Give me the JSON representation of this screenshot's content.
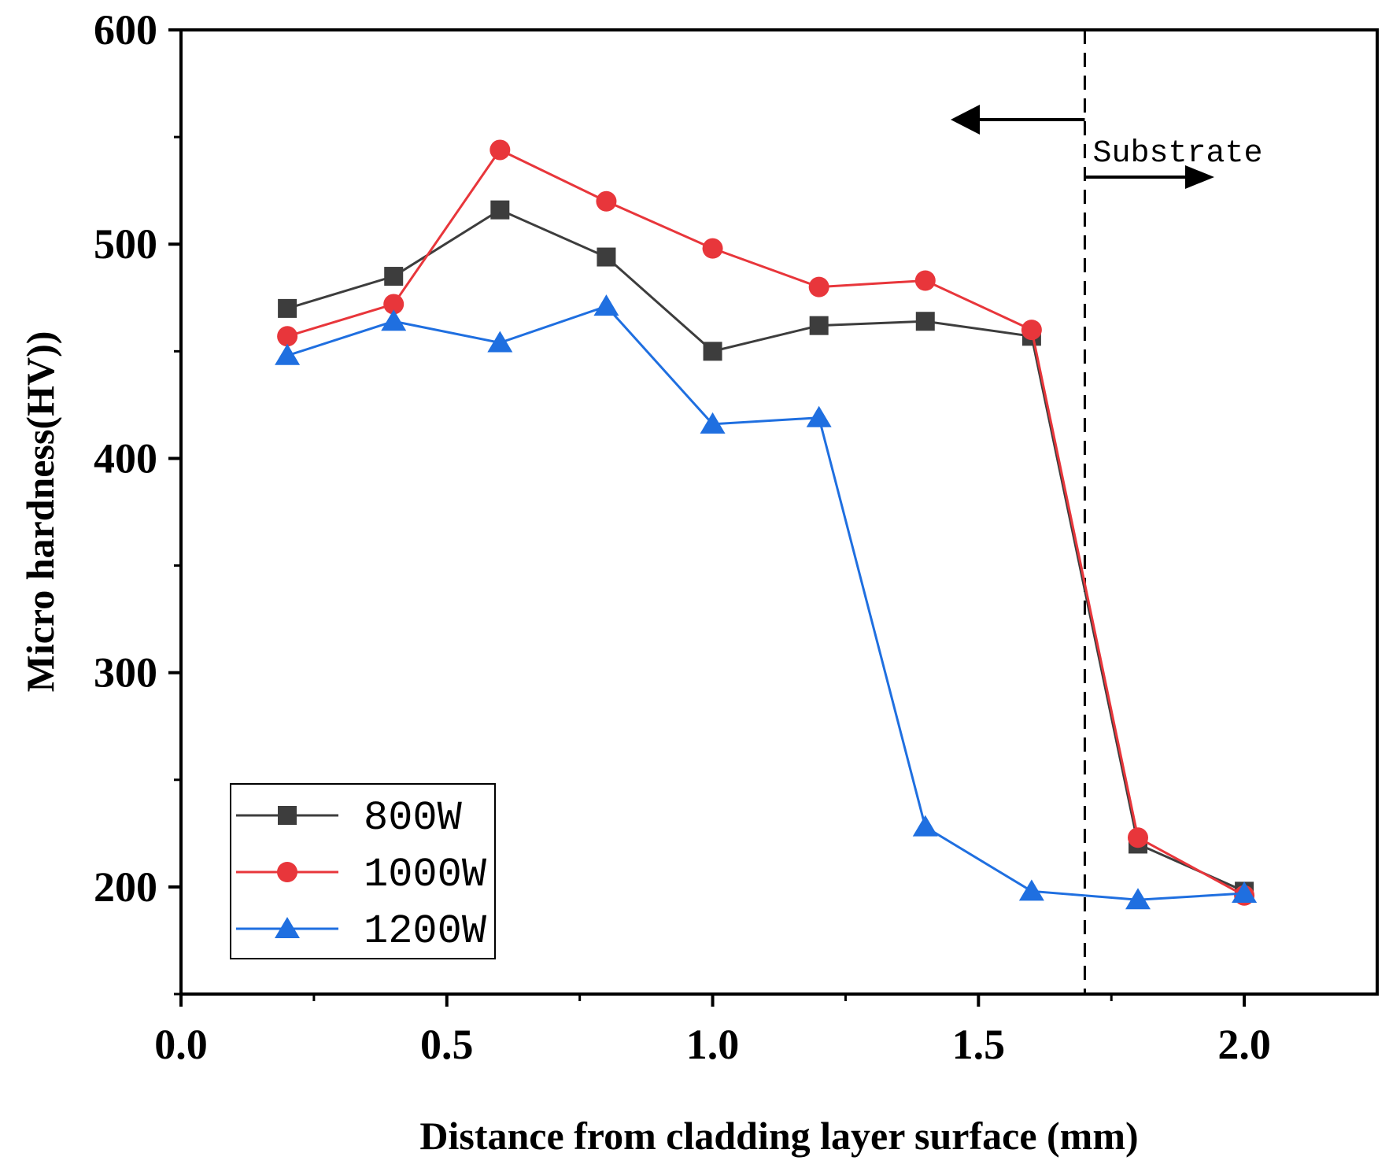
{
  "chart_data": {
    "type": "line",
    "title": "",
    "xlabel": "Distance from cladding layer surface (mm)",
    "ylabel": "Micro hardness(HV))",
    "xlim": [
      0.0,
      2.25
    ],
    "ylim": [
      150,
      600
    ],
    "x_ticks": [
      "0.0",
      "0.5",
      "1.0",
      "1.5",
      "2.0"
    ],
    "y_ticks": [
      "200",
      "300",
      "400",
      "500",
      "600"
    ],
    "grid": false,
    "legend_position": "bottom-left",
    "x": [
      0.2,
      0.4,
      0.6,
      0.8,
      1.0,
      1.2,
      1.4,
      1.6,
      1.8,
      2.0
    ],
    "series": [
      {
        "name": "800W",
        "marker": "square",
        "color": "#3d3d3d",
        "values": [
          470,
          485,
          516,
          494,
          450,
          462,
          464,
          457,
          220,
          198
        ]
      },
      {
        "name": "1000W",
        "marker": "circle",
        "color": "#e8363b",
        "values": [
          457,
          472,
          544,
          520,
          498,
          480,
          483,
          460,
          223,
          196
        ]
      },
      {
        "name": "1200W",
        "marker": "triangle",
        "color": "#1f6fe0",
        "values": [
          448,
          464,
          454,
          471,
          416,
          419,
          228,
          198,
          194,
          197
        ]
      }
    ],
    "annotations": [
      {
        "text": "Substrate",
        "boundary_x": 1.7
      }
    ]
  }
}
